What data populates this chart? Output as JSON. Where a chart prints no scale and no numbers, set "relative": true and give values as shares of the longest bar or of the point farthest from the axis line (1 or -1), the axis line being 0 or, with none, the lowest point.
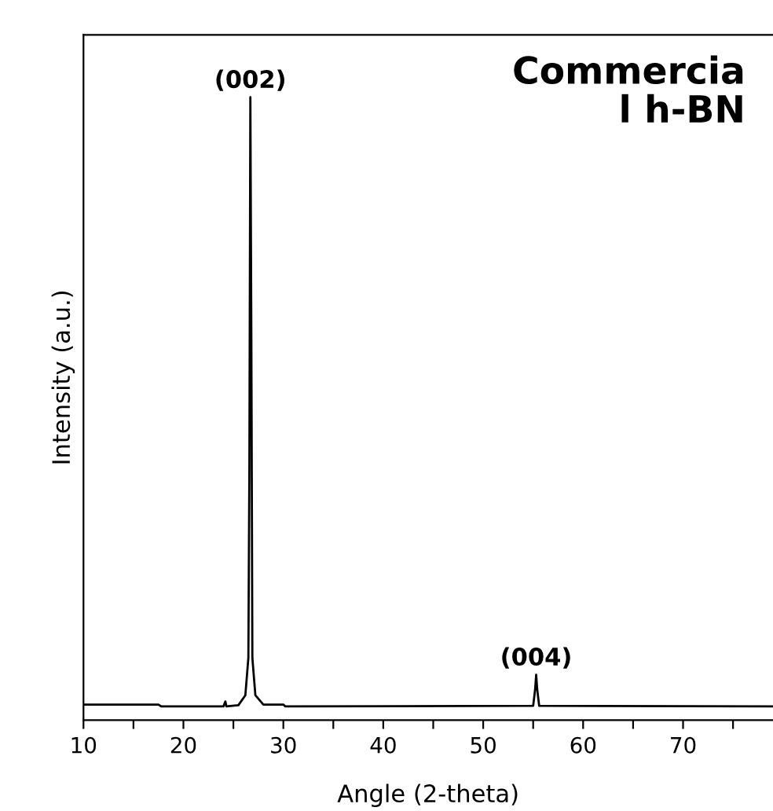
{
  "chart_data": {
    "type": "line",
    "relative": true,
    "xlabel": "Angle (2-theta)",
    "ylabel": "Intensity (a.u.)",
    "xlim": [
      10,
      79
    ],
    "xticks": [
      10,
      {
        "value": 15,
        "label": null
      },
      20,
      {
        "value": 25,
        "label": null
      },
      30,
      {
        "value": 35,
        "label": null
      },
      40,
      {
        "value": 45,
        "label": null
      },
      50,
      {
        "value": 55,
        "label": null
      },
      60,
      {
        "value": 65,
        "label": null
      },
      70,
      {
        "value": 75,
        "label": null
      }
    ],
    "x": [
      10,
      17.5,
      17.8,
      24,
      24.2,
      24.3,
      25.5,
      26.2,
      26.5,
      26.6,
      26.7,
      26.8,
      26.9,
      27.2,
      28,
      30,
      30.2,
      55,
      55.2,
      55.3,
      55.4,
      55.6,
      79
    ],
    "series": [
      {
        "color": "#000000",
        "values": [
          0.025,
          0.025,
          0.022,
          0.022,
          0.03,
          0.022,
          0.024,
          0.04,
          0.1,
          0.4,
          1.0,
          0.6,
          0.1,
          0.04,
          0.025,
          0.025,
          0.022,
          0.023,
          0.05,
          0.073,
          0.05,
          0.023,
          0.022
        ]
      }
    ],
    "annotations": [
      {
        "text": "(002)",
        "x": 26.7,
        "y": 1.0
      },
      {
        "text": "(004)",
        "x": 55.3,
        "y": 0.073
      },
      "Commercia\nl h-BN"
    ],
    "grid": false,
    "legend": false,
    "marker": "none",
    "line_style": "solid"
  }
}
